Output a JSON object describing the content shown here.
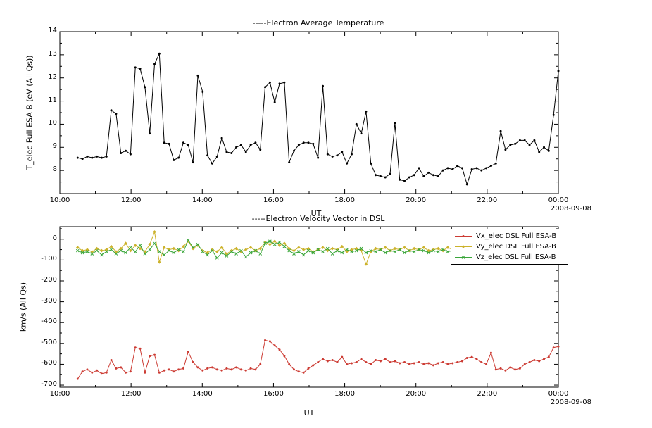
{
  "page": {
    "background": "#ffffff"
  },
  "chart_data": [
    {
      "type": "line",
      "title": "-----Electron Average Temperature",
      "xlabel": "UT",
      "ylabel": "T_elec Full ESA-B (eV (All Qs))",
      "date_label": "2008-09-08",
      "xlim": [
        10,
        24
      ],
      "ylim": [
        7,
        14
      ],
      "grid": false,
      "x_tick_hours": [
        10,
        12,
        14,
        16,
        18,
        20,
        22,
        24
      ],
      "x_tick_labels": [
        "10:00",
        "12:00",
        "14:00",
        "16:00",
        "18:00",
        "20:00",
        "22:00",
        "00:00"
      ],
      "x_minor_step": 1,
      "y_ticks": [
        8,
        9,
        10,
        11,
        12,
        13,
        14
      ],
      "y_tick_labels": [
        "8",
        "9",
        "10",
        "11",
        "12",
        "13",
        "14"
      ],
      "y_minor_step": 0.5,
      "x_start": 10.5,
      "x_step": 0.135,
      "series": [
        {
          "name": "T_elec Full ESA-B",
          "color": "#000000",
          "marker": "dot",
          "values": [
            8.55,
            8.5,
            8.6,
            8.55,
            8.6,
            8.55,
            8.6,
            10.6,
            10.45,
            8.75,
            8.85,
            8.7,
            12.45,
            12.4,
            11.6,
            9.6,
            12.6,
            13.05,
            9.2,
            9.15,
            8.45,
            8.55,
            9.2,
            9.1,
            8.35,
            12.1,
            11.4,
            8.65,
            8.3,
            8.6,
            9.4,
            8.8,
            8.75,
            9.0,
            9.1,
            8.8,
            9.1,
            9.2,
            8.9,
            11.6,
            11.8,
            10.95,
            11.75,
            11.8,
            8.35,
            8.85,
            9.1,
            9.2,
            9.2,
            9.15,
            8.55,
            11.65,
            8.7,
            8.6,
            8.65,
            8.8,
            8.3,
            8.7,
            10.0,
            9.6,
            10.55,
            8.3,
            7.8,
            7.75,
            7.7,
            7.85,
            10.05,
            7.6,
            7.55,
            7.7,
            7.8,
            8.1,
            7.75,
            7.9,
            7.8,
            7.75,
            8.0,
            8.1,
            8.05,
            8.2,
            8.1,
            7.4,
            8.05,
            8.1,
            8.0,
            8.1,
            8.2,
            8.3,
            9.7,
            8.9,
            9.1,
            9.15,
            9.3,
            9.3,
            9.1,
            9.3,
            8.8,
            9.0,
            8.85,
            10.4,
            12.3
          ]
        }
      ]
    },
    {
      "type": "line",
      "title": "-----Electron Velocity Vector in DSL",
      "xlabel": "UT",
      "ylabel": "km/s (All Qs)",
      "date_label": "2008-09-08",
      "xlim": [
        10,
        24
      ],
      "ylim": [
        -710,
        60
      ],
      "grid": false,
      "x_tick_hours": [
        10,
        12,
        14,
        16,
        18,
        20,
        22,
        24
      ],
      "x_tick_labels": [
        "10:00",
        "12:00",
        "14:00",
        "16:00",
        "18:00",
        "20:00",
        "22:00",
        "00:00"
      ],
      "x_minor_step": 1,
      "y_ticks": [
        0,
        -100,
        -200,
        -300,
        -400,
        -500,
        -600,
        -700
      ],
      "y_tick_labels": [
        "0",
        "-100",
        "-200",
        "-300",
        "-400",
        "-500",
        "-600",
        "-700"
      ],
      "y_minor_step": 50,
      "x_start": 10.5,
      "x_step": 0.135,
      "legend": {
        "position": "top-right",
        "entries": [
          "Vx_elec DSL Full ESA-B",
          "Vy_elec DSL Full ESA-B",
          "Vz_elec DSL Full ESA-B"
        ]
      },
      "series": [
        {
          "name": "Vx_elec DSL Full ESA-B",
          "color": "#cc3b33",
          "marker": "dot",
          "values": [
            -670,
            -635,
            -625,
            -640,
            -630,
            -645,
            -640,
            -580,
            -620,
            -615,
            -640,
            -635,
            -520,
            -525,
            -640,
            -560,
            -555,
            -640,
            -630,
            -625,
            -635,
            -625,
            -620,
            -540,
            -590,
            -615,
            -630,
            -620,
            -615,
            -625,
            -630,
            -620,
            -625,
            -615,
            -625,
            -630,
            -620,
            -625,
            -600,
            -485,
            -490,
            -510,
            -530,
            -560,
            -600,
            -625,
            -635,
            -640,
            -620,
            -605,
            -590,
            -575,
            -585,
            -580,
            -590,
            -565,
            -600,
            -595,
            -590,
            -575,
            -590,
            -600,
            -580,
            -585,
            -575,
            -590,
            -585,
            -595,
            -590,
            -600,
            -595,
            -590,
            -600,
            -595,
            -605,
            -595,
            -590,
            -600,
            -595,
            -590,
            -585,
            -570,
            -565,
            -575,
            -590,
            -600,
            -545,
            -625,
            -620,
            -630,
            -615,
            -625,
            -620,
            -600,
            -590,
            -580,
            -585,
            -575,
            -565,
            -520,
            -515
          ]
        },
        {
          "name": "Vy_elec DSL Full ESA-B",
          "color": "#ccb22b",
          "marker": "diamond",
          "values": [
            -40,
            -55,
            -50,
            -60,
            -45,
            -55,
            -50,
            -35,
            -60,
            -45,
            -20,
            -55,
            -30,
            -45,
            -60,
            -25,
            35,
            -110,
            -40,
            -50,
            -45,
            -55,
            -35,
            -10,
            -45,
            -30,
            -55,
            -65,
            -50,
            -60,
            -40,
            -70,
            -55,
            -45,
            -60,
            -50,
            -40,
            -55,
            -45,
            -15,
            -25,
            -10,
            -30,
            -20,
            -45,
            -55,
            -40,
            -50,
            -45,
            -60,
            -50,
            -40,
            -55,
            -45,
            -50,
            -35,
            -60,
            -50,
            -45,
            -55,
            -120,
            -60,
            -45,
            -50,
            -40,
            -55,
            -45,
            -50,
            -40,
            -55,
            -45,
            -50,
            -40,
            -55,
            -50,
            -45,
            -55,
            -40,
            -50,
            -45,
            -55,
            -50,
            -40,
            -50,
            -45,
            -55,
            -45,
            -50,
            -40,
            -55,
            -45,
            -50,
            -40,
            -45,
            -50,
            -40,
            -45,
            -35,
            -40,
            -35,
            -30
          ]
        },
        {
          "name": "Vz_elec DSL Full ESA-B",
          "color": "#3aa63a",
          "marker": "cross",
          "values": [
            -55,
            -65,
            -60,
            -70,
            -55,
            -75,
            -60,
            -50,
            -70,
            -55,
            -65,
            -40,
            -60,
            -30,
            -70,
            -50,
            -20,
            -60,
            -75,
            -55,
            -65,
            -50,
            -60,
            -5,
            -40,
            -25,
            -60,
            -75,
            -55,
            -90,
            -65,
            -80,
            -60,
            -70,
            -55,
            -85,
            -65,
            -55,
            -70,
            -20,
            -10,
            -25,
            -15,
            -35,
            -55,
            -70,
            -60,
            -75,
            -55,
            -65,
            -50,
            -60,
            -45,
            -70,
            -55,
            -65,
            -50,
            -60,
            -55,
            -45,
            -65,
            -55,
            -60,
            -50,
            -65,
            -55,
            -60,
            -50,
            -65,
            -55,
            -60,
            -50,
            -55,
            -65,
            -55,
            -60,
            -50,
            -60,
            -55,
            -65,
            -55,
            -60,
            -50,
            -60,
            -55,
            -65,
            -55,
            -60,
            -50,
            -60,
            -55,
            -65,
            -55,
            -60,
            -50,
            -55,
            -60,
            -50,
            -55,
            -45,
            -40
          ]
        }
      ]
    }
  ]
}
